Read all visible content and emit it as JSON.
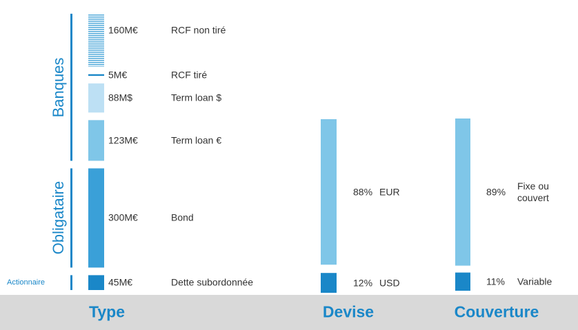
{
  "chart_data": {
    "type": "stacked-column",
    "columns": [
      {
        "label": "Type",
        "groups": [
          {
            "name": "Banques",
            "segments": [
              {
                "value": 160,
                "value_label": "160M€",
                "name": "RCF non tiré",
                "color": "#5aaedc",
                "hatched": true
              },
              {
                "value": 5,
                "value_label": "5M€",
                "name": "RCF tiré",
                "color": "#1a87c8"
              },
              {
                "value": 88,
                "value_label": "88M$",
                "name": "Term loan $",
                "color": "#bde0f4"
              },
              {
                "value": 123,
                "value_label": "123M€",
                "name": "Term loan €",
                "color": "#7fc6e8"
              }
            ]
          },
          {
            "name": "Obligataire",
            "segments": [
              {
                "value": 300,
                "value_label": "300M€",
                "name": "Bond",
                "color": "#3aa0d8"
              }
            ]
          },
          {
            "name": "Actionnaire",
            "segments": [
              {
                "value": 45,
                "value_label": "45M€",
                "name": "Dette subordonnée",
                "color": "#1a87c8"
              }
            ]
          }
        ]
      },
      {
        "label": "Devise",
        "groups": [
          {
            "segments": [
              {
                "value": 88,
                "value_label": "88%",
                "name": "EUR",
                "color": "#7fc6e8"
              },
              {
                "value": 12,
                "value_label": "12%",
                "name": "USD",
                "color": "#1a87c8"
              }
            ]
          }
        ]
      },
      {
        "label": "Couverture",
        "groups": [
          {
            "segments": [
              {
                "value": 89,
                "value_label": "89%",
                "name": "Fixe ou couvert",
                "color": "#7fc6e8"
              },
              {
                "value": 11,
                "value_label": "11%",
                "name": "Variable",
                "color": "#1a87c8"
              }
            ]
          }
        ]
      }
    ]
  }
}
